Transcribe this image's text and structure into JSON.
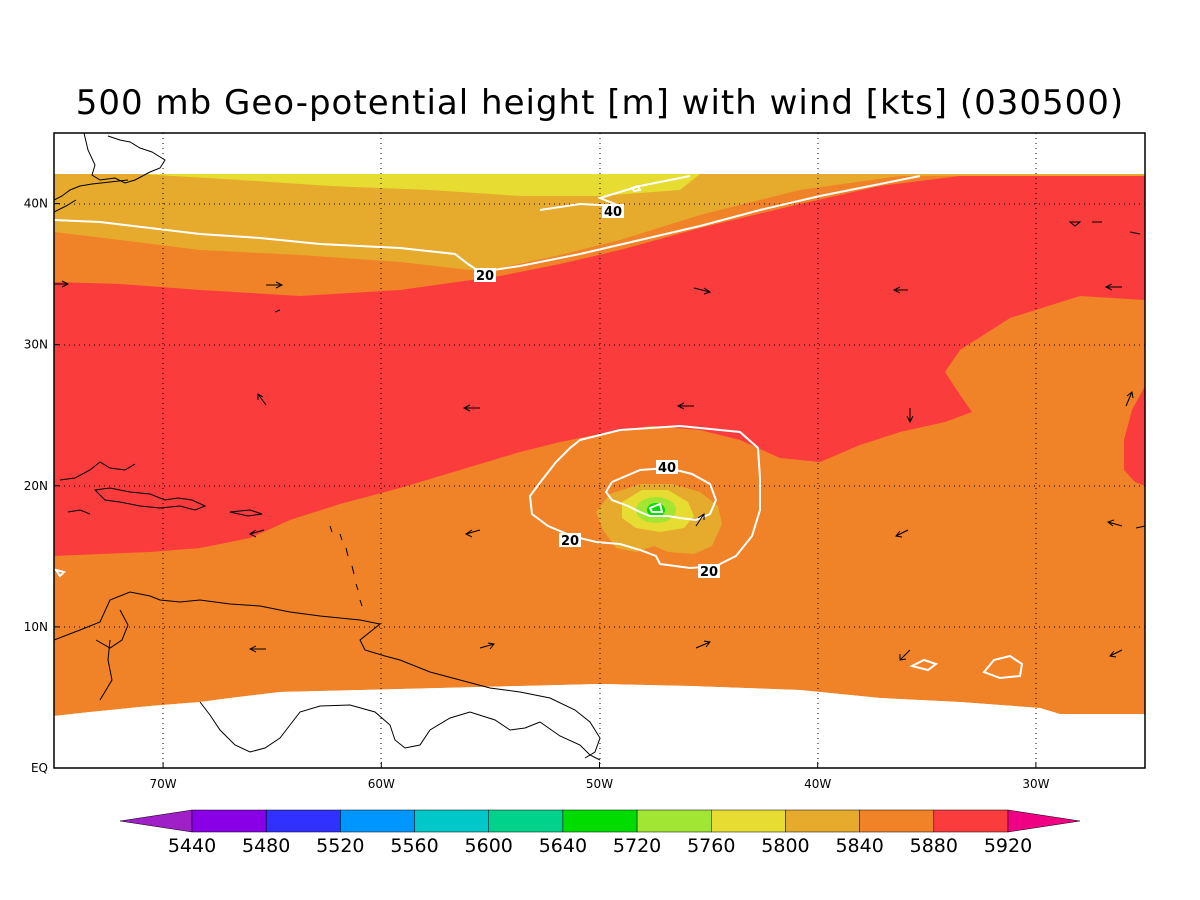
{
  "title": "500 mb Geo-potential height [m] with wind [kts] (030500)",
  "map": {
    "lon_range": [
      -75,
      -25
    ],
    "lat_range": [
      0,
      45
    ],
    "lon_ticks": [
      {
        "value": -70,
        "label": "70W"
      },
      {
        "value": -60,
        "label": "60W"
      },
      {
        "value": -50,
        "label": "50W"
      },
      {
        "value": -40,
        "label": "40W"
      },
      {
        "value": -30,
        "label": "30W"
      }
    ],
    "lat_ticks": [
      {
        "value": 0,
        "label": "EQ"
      },
      {
        "value": 10,
        "label": "10N"
      },
      {
        "value": 20,
        "label": "20N"
      },
      {
        "value": 30,
        "label": "30N"
      },
      {
        "value": 40,
        "label": "40N"
      }
    ],
    "gridlines": "dotted"
  },
  "wind_contours": [
    {
      "label": "40"
    },
    {
      "label": "20"
    },
    {
      "label": "40"
    },
    {
      "label": "20"
    },
    {
      "label": "20"
    }
  ],
  "colorbar": {
    "levels": [
      "5440",
      "5480",
      "5520",
      "5560",
      "5600",
      "5640",
      "5720",
      "5760",
      "5800",
      "5840",
      "5880",
      "5920"
    ],
    "colors": [
      "#a020c8",
      "#8a00e6",
      "#3030ff",
      "#0096ff",
      "#00c8c8",
      "#00d28c",
      "#00dc00",
      "#a0e632",
      "#e6dc32",
      "#e6aa2d",
      "#f08228",
      "#fa3c3c",
      "#f00082"
    ]
  },
  "colors": {
    "band_5800": "#e6dc32",
    "band_5840": "#e6aa2d",
    "band_5880": "#f08228",
    "band_5920": "#fa3c3c",
    "center_green": "#a0e632",
    "center_core": "#00dc00",
    "contour_line": "#ffffff",
    "coastline": "#000000"
  }
}
